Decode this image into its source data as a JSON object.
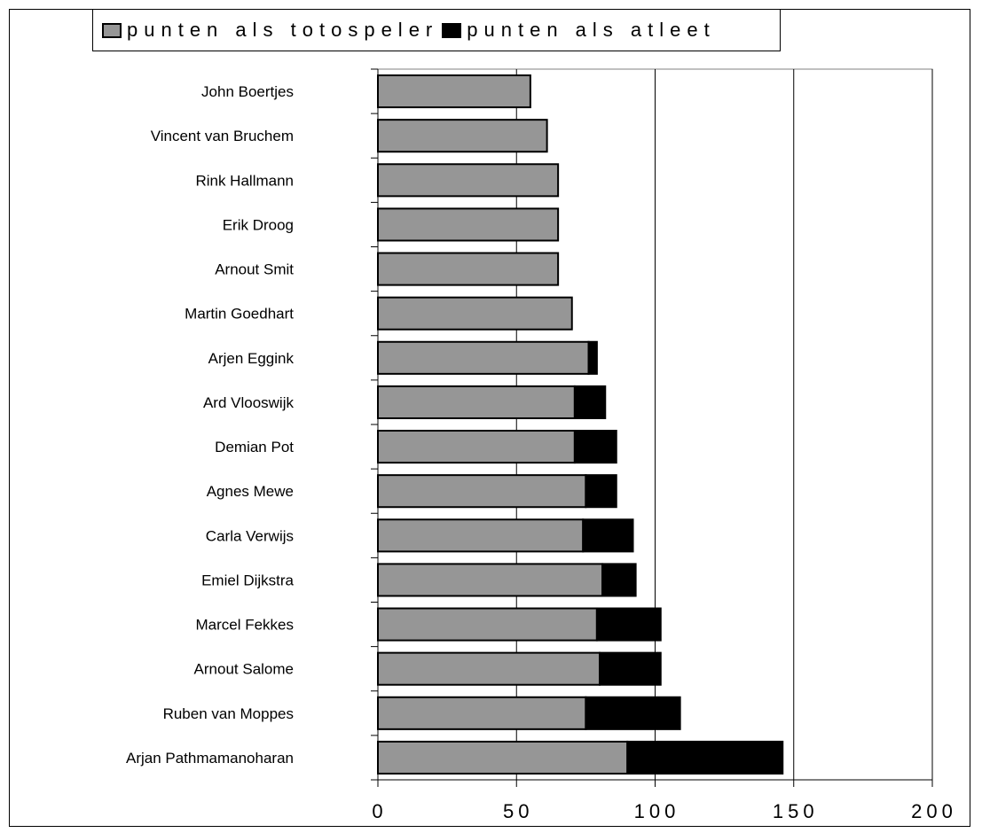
{
  "chart_data": {
    "type": "bar",
    "orientation": "horizontal",
    "stacked": true,
    "categories": [
      "John Boertjes",
      "Vincent van Bruchem",
      "Rink Hallmann",
      "Erik Droog",
      "Arnout Smit",
      "Martin Goedhart",
      "Arjen Eggink",
      "Ard Vlooswijk",
      "Demian Pot",
      "Agnes Mewe",
      "Carla Verwijs",
      "Emiel Dijkstra",
      "Marcel Fekkes",
      "Arnout Salome",
      "Ruben van Moppes",
      "Arjan Pathmamanoharan"
    ],
    "series": [
      {
        "name": "punten als totospeler",
        "color": "#969696",
        "values": [
          55,
          61,
          65,
          65,
          65,
          70,
          76,
          71,
          71,
          75,
          74,
          81,
          79,
          80,
          75,
          90
        ]
      },
      {
        "name": "punten als atleet",
        "color": "#000000",
        "values": [
          0,
          0,
          0,
          0,
          0,
          0,
          3,
          11,
          15,
          11,
          18,
          12,
          23,
          22,
          34,
          56
        ]
      }
    ],
    "xlim": [
      0,
      200
    ],
    "xticks": [
      "0",
      "50",
      "100",
      "150",
      "200"
    ],
    "grid": "vertical",
    "legend": "top"
  }
}
